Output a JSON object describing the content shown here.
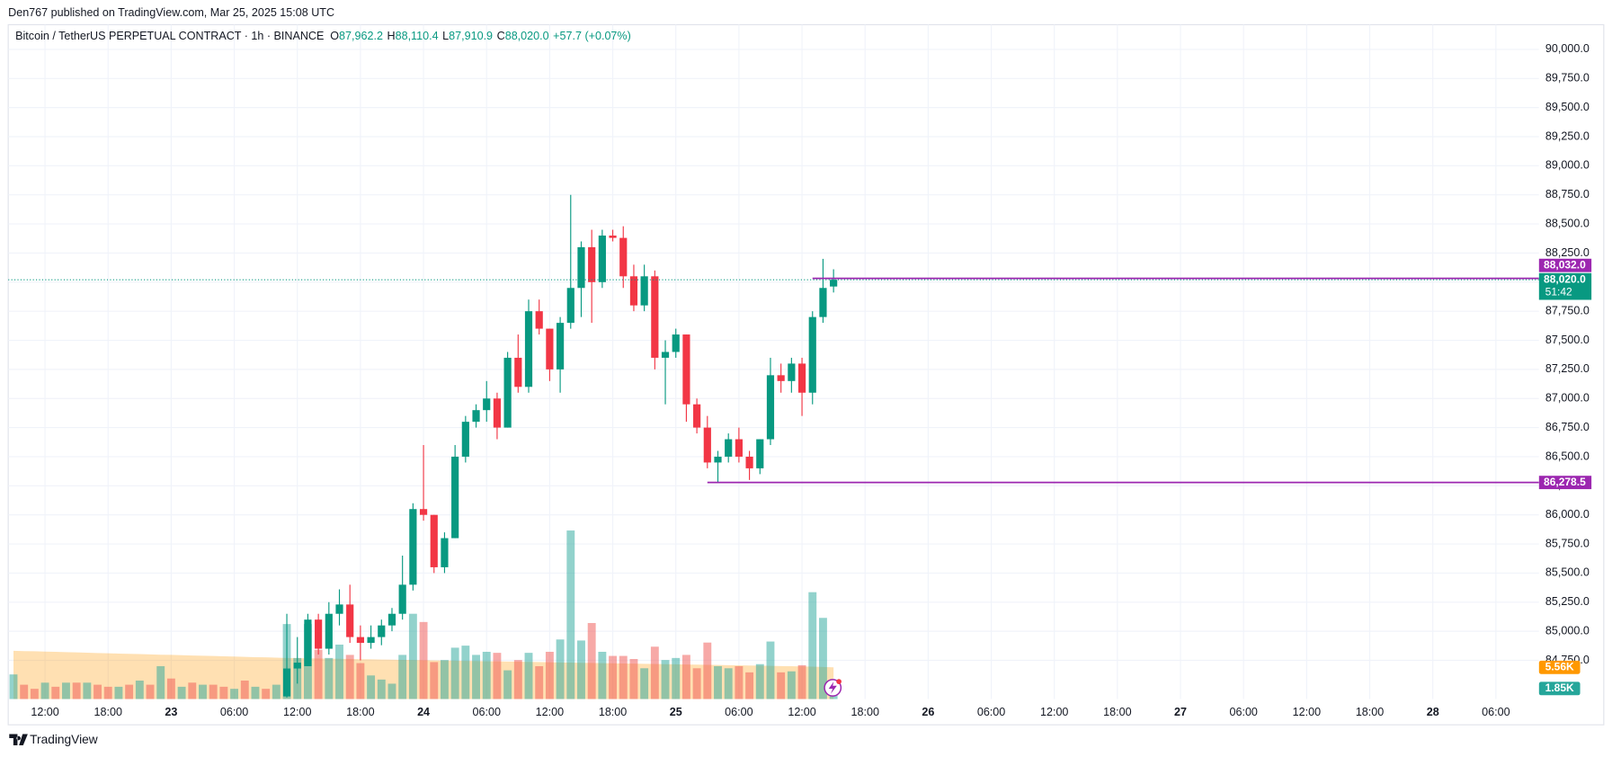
{
  "header": "Den767 published on TradingView.com, Mar 25, 2025 15:08 UTC",
  "footer": "TradingView",
  "chart_data": {
    "type": "candlestick",
    "legend": {
      "symbol": "Bitcoin / TetherUS PERPETUAL CONTRACT · 1h · BINANCE",
      "items": [
        {
          "key": "O",
          "value": "87,962.2"
        },
        {
          "key": "H",
          "value": "88,110.4"
        },
        {
          "key": "L",
          "value": "87,910.9"
        },
        {
          "key": "C",
          "value": "88,020.0"
        }
      ],
      "change": "+57.7 (+0.07%)"
    },
    "up_color": "#089981",
    "down_color": "#f23645",
    "volume_up_color": "#26a69a",
    "volume_down_color": "#ef5350",
    "volume_ma_color": "#ff9800",
    "x": [
      "2025-03-22 09:00",
      "2025-03-22 10:00",
      "2025-03-22 11:00",
      "2025-03-22 12:00",
      "2025-03-22 13:00",
      "2025-03-22 14:00",
      "2025-03-22 15:00",
      "2025-03-22 16:00",
      "2025-03-22 17:00",
      "2025-03-22 18:00",
      "2025-03-22 19:00",
      "2025-03-22 20:00",
      "2025-03-22 21:00",
      "2025-03-22 22:00",
      "2025-03-22 23:00",
      "2025-03-23 00:00",
      "2025-03-23 01:00",
      "2025-03-23 02:00",
      "2025-03-23 03:00",
      "2025-03-23 04:00",
      "2025-03-23 05:00",
      "2025-03-23 06:00",
      "2025-03-23 07:00",
      "2025-03-23 08:00",
      "2025-03-23 09:00",
      "2025-03-23 10:00",
      "2025-03-23 11:00",
      "2025-03-23 12:00",
      "2025-03-23 13:00",
      "2025-03-23 14:00",
      "2025-03-23 15:00",
      "2025-03-23 16:00",
      "2025-03-23 17:00",
      "2025-03-23 18:00",
      "2025-03-23 19:00",
      "2025-03-23 20:00",
      "2025-03-23 21:00",
      "2025-03-23 22:00",
      "2025-03-23 23:00",
      "2025-03-24 00:00",
      "2025-03-24 01:00",
      "2025-03-24 02:00",
      "2025-03-24 03:00",
      "2025-03-24 04:00",
      "2025-03-24 05:00",
      "2025-03-24 06:00",
      "2025-03-24 07:00",
      "2025-03-24 08:00",
      "2025-03-24 09:00",
      "2025-03-24 10:00",
      "2025-03-24 11:00",
      "2025-03-24 12:00",
      "2025-03-24 13:00",
      "2025-03-24 14:00",
      "2025-03-24 15:00",
      "2025-03-24 16:00",
      "2025-03-24 17:00",
      "2025-03-24 18:00",
      "2025-03-24 19:00",
      "2025-03-24 20:00",
      "2025-03-24 21:00",
      "2025-03-24 22:00",
      "2025-03-24 23:00",
      "2025-03-25 00:00",
      "2025-03-25 01:00",
      "2025-03-25 02:00",
      "2025-03-25 03:00",
      "2025-03-25 04:00",
      "2025-03-25 05:00",
      "2025-03-25 06:00",
      "2025-03-25 07:00",
      "2025-03-25 08:00",
      "2025-03-25 09:00",
      "2025-03-25 10:00",
      "2025-03-25 11:00",
      "2025-03-25 12:00",
      "2025-03-25 13:00",
      "2025-03-25 14:00",
      "2025-03-25 15:00"
    ],
    "open": [
      null,
      null,
      null,
      null,
      null,
      null,
      null,
      null,
      null,
      null,
      null,
      null,
      null,
      null,
      null,
      null,
      null,
      null,
      null,
      null,
      null,
      null,
      null,
      null,
      null,
      null,
      84440,
      84680,
      84700,
      85100,
      84850,
      85150,
      85230,
      84950,
      84900,
      84950,
      85050,
      85150,
      85400,
      86050,
      86000,
      85550,
      85800,
      86500,
      86800,
      86900,
      87000,
      86750,
      87350,
      87100,
      87750,
      87600,
      87250,
      87650,
      87950,
      88300,
      88000,
      88400,
      88380,
      88050,
      87800,
      88050,
      87350,
      87400,
      87550,
      86950,
      86750,
      86450,
      86500,
      86650,
      86500,
      86400,
      86650,
      87200,
      87150,
      87300,
      87050,
      87700,
      87962.2
    ],
    "high": [
      null,
      null,
      null,
      null,
      null,
      null,
      null,
      null,
      null,
      null,
      null,
      null,
      null,
      null,
      null,
      null,
      null,
      null,
      null,
      null,
      null,
      null,
      null,
      null,
      null,
      null,
      85150,
      84950,
      85150,
      85150,
      85250,
      85360,
      85400,
      85050,
      85050,
      85100,
      85200,
      85650,
      86100,
      86600,
      86000,
      85850,
      86600,
      86850,
      86950,
      87150,
      87050,
      87400,
      87550,
      87850,
      87850,
      87600,
      87700,
      88750,
      88350,
      88450,
      88450,
      88450,
      88480,
      88150,
      88150,
      88100,
      87500,
      87600,
      87550,
      87000,
      86850,
      86550,
      86700,
      86750,
      86550,
      86650,
      87350,
      87300,
      87350,
      87350,
      87750,
      88200,
      88110.4
    ],
    "low": [
      null,
      null,
      null,
      null,
      null,
      null,
      null,
      null,
      null,
      null,
      null,
      null,
      null,
      null,
      null,
      null,
      null,
      null,
      null,
      null,
      null,
      null,
      null,
      null,
      null,
      null,
      84430,
      84550,
      84700,
      84800,
      84800,
      85050,
      84900,
      84750,
      84850,
      84880,
      85000,
      85100,
      85350,
      85950,
      85500,
      85500,
      85800,
      86450,
      86750,
      86800,
      86650,
      86750,
      87050,
      87050,
      87550,
      87150,
      87050,
      87600,
      87700,
      87650,
      87950,
      88350,
      87950,
      87750,
      87750,
      87250,
      86950,
      87350,
      86800,
      86700,
      86400,
      86278.5,
      86450,
      86450,
      86300,
      86350,
      86600,
      87050,
      87050,
      86850,
      86950,
      87650,
      87910.9
    ],
    "close": [
      null,
      null,
      null,
      null,
      null,
      null,
      null,
      null,
      null,
      null,
      null,
      null,
      null,
      null,
      null,
      null,
      null,
      null,
      null,
      null,
      null,
      null,
      null,
      null,
      null,
      null,
      84680,
      84730,
      85100,
      84850,
      85150,
      85230,
      84950,
      84900,
      84950,
      85050,
      85150,
      85400,
      86050,
      86000,
      85550,
      85800,
      86500,
      86800,
      86900,
      87000,
      86750,
      87350,
      87100,
      87750,
      87600,
      87250,
      87650,
      87950,
      88300,
      88000,
      88400,
      88380,
      88050,
      87800,
      88050,
      87350,
      87400,
      87550,
      86950,
      86750,
      86450,
      86500,
      86650,
      86500,
      86400,
      86650,
      87200,
      87150,
      87300,
      87050,
      87700,
      87950,
      88020
    ],
    "volume": [
      4320,
      2520,
      1800,
      2880,
      2160,
      2880,
      2880,
      2880,
      2520,
      2160,
      2160,
      2520,
      3240,
      2520,
      5760,
      3600,
      2160,
      2880,
      2520,
      2520,
      2160,
      1800,
      3240,
      2160,
      1800,
      2520,
      13140,
      7200,
      13140,
      8640,
      7200,
      9540,
      7740,
      6300,
      4140,
      3420,
      2700,
      7740,
      14940,
      13500,
      6480,
      6840,
      9000,
      9360,
      7740,
      8280,
      8100,
      5040,
      6840,
      8100,
      5760,
      8280,
      10440,
      29520,
      10260,
      13320,
      8280,
      7560,
      7560,
      7020,
      5400,
      9180,
      6840,
      7200,
      7740,
      5400,
      9900,
      5760,
      5400,
      5760,
      4680,
      6120,
      10080,
      4680,
      4860,
      5940,
      18720,
      14220,
      1850
    ],
    "volume_sides": [
      "up",
      "down",
      "down",
      "up",
      "down",
      "up",
      "down",
      "up",
      "down",
      "down",
      "up",
      "down",
      "up",
      "down",
      "up",
      "down",
      "up",
      "down",
      "up",
      "down",
      "down",
      "up",
      "down",
      "up",
      "down",
      "up",
      "up",
      "up",
      "up",
      "down",
      "up",
      "up",
      "down",
      "down",
      "up",
      "up",
      "up",
      "up",
      "up",
      "down",
      "down",
      "up",
      "up",
      "up",
      "up",
      "up",
      "down",
      "up",
      "down",
      "up",
      "down",
      "down",
      "up",
      "up",
      "up",
      "down",
      "up",
      "down",
      "down",
      "down",
      "up",
      "down",
      "up",
      "up",
      "down",
      "down",
      "down",
      "up",
      "up",
      "down",
      "down",
      "up",
      "up",
      "down",
      "up",
      "down",
      "up",
      "up",
      "up"
    ],
    "volume_ma": [
      8460,
      8406,
      8370,
      8316,
      8280,
      8226,
      8172,
      8118,
      8064,
      8028,
      7974,
      7920,
      7884,
      7830,
      7776,
      7740,
      7686,
      7632,
      7596,
      7542,
      7488,
      7452,
      7398,
      7344,
      7308,
      7254,
      7200,
      7170,
      7140,
      7110,
      7080,
      7050,
      7020,
      6990,
      6960,
      6930,
      6900,
      6870,
      6840,
      6810,
      6780,
      6750,
      6720,
      6690,
      6660,
      6630,
      6600,
      6570,
      6540,
      6510,
      6480,
      6450,
      6420,
      6390,
      6360,
      6330,
      6300,
      6270,
      6240,
      6210,
      6180,
      6150,
      6120,
      6090,
      6060,
      6030,
      6000,
      5970,
      5940,
      5910,
      5880,
      5850,
      5820,
      5790,
      5760,
      5720,
      5680,
      5620,
      5560
    ],
    "volume_ma_label": "5.56K",
    "volume_label": "1.85K",
    "volume_ylim": [
      0,
      118080
    ],
    "xlim": [
      "2025-03-22 08:30",
      "2025-03-28 10:06"
    ],
    "xticks": [
      {
        "value": "2025-03-22 12:00",
        "label": "12:00"
      },
      {
        "value": "2025-03-22 18:00",
        "label": "18:00"
      },
      {
        "value": "2025-03-23 00:00",
        "label": "23"
      },
      {
        "value": "2025-03-23 06:00",
        "label": "06:00"
      },
      {
        "value": "2025-03-23 12:00",
        "label": "12:00"
      },
      {
        "value": "2025-03-23 18:00",
        "label": "18:00"
      },
      {
        "value": "2025-03-24 00:00",
        "label": "24"
      },
      {
        "value": "2025-03-24 06:00",
        "label": "06:00"
      },
      {
        "value": "2025-03-24 12:00",
        "label": "12:00"
      },
      {
        "value": "2025-03-24 18:00",
        "label": "18:00"
      },
      {
        "value": "2025-03-25 00:00",
        "label": "25"
      },
      {
        "value": "2025-03-25 06:00",
        "label": "06:00"
      },
      {
        "value": "2025-03-25 12:00",
        "label": "12:00"
      },
      {
        "value": "2025-03-25 18:00",
        "label": "18:00"
      },
      {
        "value": "2025-03-26 00:00",
        "label": "26"
      },
      {
        "value": "2025-03-26 06:00",
        "label": "06:00"
      },
      {
        "value": "2025-03-26 12:00",
        "label": "12:00"
      },
      {
        "value": "2025-03-26 18:00",
        "label": "18:00"
      },
      {
        "value": "2025-03-27 00:00",
        "label": "27"
      },
      {
        "value": "2025-03-27 06:00",
        "label": "06:00"
      },
      {
        "value": "2025-03-27 12:00",
        "label": "12:00"
      },
      {
        "value": "2025-03-27 18:00",
        "label": "18:00"
      },
      {
        "value": "2025-03-28 00:00",
        "label": "28"
      },
      {
        "value": "2025-03-28 06:00",
        "label": "06:00"
      }
    ],
    "ylim": [
      84417,
      90212
    ],
    "yticks": [
      {
        "value": 84750,
        "label": "84,750.0"
      },
      {
        "value": 85000,
        "label": "85,000.0"
      },
      {
        "value": 85250,
        "label": "85,250.0"
      },
      {
        "value": 85500,
        "label": "85,500.0"
      },
      {
        "value": 85750,
        "label": "85,750.0"
      },
      {
        "value": 86000,
        "label": "86,000.0"
      },
      {
        "value": 86250,
        "label": "86,250.0"
      },
      {
        "value": 86500,
        "label": "86,500.0"
      },
      {
        "value": 86750,
        "label": "86,750.0"
      },
      {
        "value": 87000,
        "label": "87,000.0"
      },
      {
        "value": 87250,
        "label": "87,250.0"
      },
      {
        "value": 87500,
        "label": "87,500.0"
      },
      {
        "value": 87750,
        "label": "87,750.0"
      },
      {
        "value": 88000,
        "label": "88,000.0"
      },
      {
        "value": 88250,
        "label": "88,250.0"
      },
      {
        "value": 88500,
        "label": "88,500.0"
      },
      {
        "value": 88750,
        "label": "88,750.0"
      },
      {
        "value": 89000,
        "label": "89,000.0"
      },
      {
        "value": 89250,
        "label": "89,250.0"
      },
      {
        "value": 89500,
        "label": "89,500.0"
      },
      {
        "value": 89750,
        "label": "89,750.0"
      },
      {
        "value": 90000,
        "label": "90,000.0"
      }
    ],
    "grid": true,
    "hlines": [
      {
        "value": 88032,
        "from": "2025-03-25 13:00",
        "color": "#9c27b0"
      },
      {
        "value": 86278.5,
        "from": "2025-03-25 03:00",
        "color": "#9c27b0"
      }
    ],
    "price_labels": [
      {
        "value": 88032,
        "label": "88,032.0",
        "color": "#9c27b0"
      },
      {
        "value": 88020,
        "label": "88,020.0",
        "sub": "51:42",
        "color": "#089981"
      },
      {
        "value": 86278.5,
        "label": "86,278.5",
        "color": "#9c27b0"
      }
    ]
  }
}
